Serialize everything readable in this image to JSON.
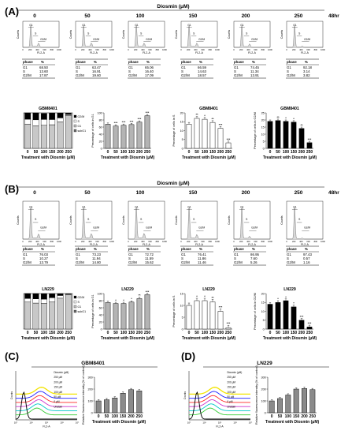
{
  "panel_letters": [
    "(A)",
    "(B)",
    "(C)",
    "(D)"
  ],
  "time_label": "48hr",
  "diosmin_header": "Diosmin (μM)",
  "histogram_axis": {
    "ylabel": "Counts",
    "xlabel": "FL2-A",
    "ticks": [
      "0",
      "200",
      "400",
      "600",
      "800",
      "1000"
    ]
  },
  "gate_labels": {
    "g1": "G1",
    "s": "S",
    "g2m": "G2/M"
  },
  "table_header": {
    "phase": "phase",
    "percent": "%"
  },
  "concentrations": [
    "0",
    "50",
    "100",
    "150",
    "200",
    "250"
  ],
  "sections": [
    {
      "cell_line": "GBM8401",
      "tables": [
        {
          "G1": "68.50",
          "S": "13.60",
          "G2/M": "17.87"
        },
        {
          "G1": "63.47",
          "S": "16.91",
          "G2/M": "19.60"
        },
        {
          "G1": "65.06",
          "S": "16.40",
          "G2/M": "17.09"
        },
        {
          "G1": "66.59",
          "S": "14.63",
          "G2/M": "18.57"
        },
        {
          "G1": "74.45",
          "S": "11.34",
          "G2/M": "13.91"
        },
        {
          "G1": "92.18",
          "S": "3.14",
          "G2/M": "3.82"
        }
      ]
    },
    {
      "cell_line": "LN229",
      "tables": [
        {
          "G1": "76.03",
          "S": "10.27",
          "G2/M": "13.79"
        },
        {
          "G1": "73.23",
          "S": "11.94",
          "G2/M": "14.80"
        },
        {
          "G1": "72.72",
          "S": "11.59",
          "G2/M": "15.62"
        },
        {
          "G1": "76.41",
          "S": "11.86",
          "G2/M": "11.46"
        },
        {
          "G1": "86.95",
          "S": "7.60",
          "G2/M": "5.26"
        },
        {
          "G1": "97.43",
          "S": "0.57",
          "G2/M": "1.16"
        }
      ]
    }
  ],
  "bar_xlabel": "Treatment with Diosmin (μM)",
  "legend_entries": [
    "G2/M",
    "S",
    "G1",
    "subG1"
  ],
  "colors": {
    "g1": "#c8c8c8",
    "s": "#ffffff",
    "g2m": "#000000",
    "subg1": "#6e6e6e"
  },
  "chart_data": [
    {
      "type": "bar",
      "stacked": true,
      "title": "GBM8401",
      "categories": [
        "0",
        "50",
        "100",
        "150",
        "200",
        "250"
      ],
      "ylim": [
        0,
        100
      ],
      "series": [
        {
          "name": "G1",
          "values": [
            68.5,
            63.47,
            65.06,
            66.59,
            74.45,
            92.18
          ]
        },
        {
          "name": "S",
          "values": [
            13.6,
            16.91,
            16.4,
            14.63,
            11.34,
            3.14
          ]
        },
        {
          "name": "G2/M",
          "values": [
            17.87,
            19.6,
            17.09,
            18.57,
            13.91,
            3.82
          ]
        }
      ]
    },
    {
      "type": "bar",
      "ylabel": "Percentage of cells in G1",
      "categories": [
        "0",
        "50",
        "100",
        "150",
        "200",
        "250"
      ],
      "ylim": [
        0,
        100
      ],
      "yticks": [
        0,
        20,
        40,
        60,
        80,
        100
      ],
      "values": [
        68,
        63,
        65,
        67,
        74,
        92
      ],
      "color": "#b4b4b4",
      "stars": [
        "",
        "***",
        "***",
        "***",
        "***",
        "***"
      ]
    },
    {
      "type": "bar",
      "title": "GBM8401",
      "ylabel": "Percentage of cells in S",
      "categories": [
        "0",
        "50",
        "100",
        "150",
        "200",
        "250"
      ],
      "ylim": [
        0,
        20
      ],
      "yticks": [
        0,
        5,
        10,
        15,
        20
      ],
      "values": [
        13.6,
        16.9,
        16.4,
        14.6,
        11.3,
        3.1
      ],
      "color": "#ffffff",
      "stars": [
        "",
        "**",
        "*",
        "**",
        "***",
        "***"
      ]
    },
    {
      "type": "bar",
      "title": "GBM8401",
      "ylabel": "Percentage of cells in G2/M",
      "categories": [
        "0",
        "50",
        "100",
        "150",
        "200",
        "250"
      ],
      "ylim": [
        0,
        25
      ],
      "yticks": [
        0,
        5,
        10,
        15,
        20,
        25
      ],
      "values": [
        19,
        19.6,
        19,
        18.5,
        14,
        4
      ],
      "color": "#000000",
      "stars": [
        "",
        "**",
        "*",
        "*",
        "**",
        "***"
      ]
    },
    {
      "type": "bar",
      "stacked": true,
      "title": "LN229",
      "categories": [
        "0",
        "50",
        "100",
        "150",
        "200",
        "250"
      ],
      "ylim": [
        0,
        100
      ],
      "series": [
        {
          "name": "G1",
          "values": [
            76.03,
            73.23,
            72.72,
            76.41,
            86.95,
            97.43
          ]
        },
        {
          "name": "S",
          "values": [
            10.27,
            11.94,
            11.59,
            11.86,
            7.6,
            0.57
          ]
        },
        {
          "name": "G2/M",
          "values": [
            13.79,
            14.8,
            15.62,
            11.46,
            5.26,
            1.16
          ]
        }
      ]
    },
    {
      "type": "bar",
      "title": "LN229",
      "ylabel": "Percentage of cells in G1",
      "categories": [
        "0",
        "50",
        "100",
        "150",
        "200",
        "250"
      ],
      "ylim": [
        0,
        100
      ],
      "yticks": [
        0,
        20,
        40,
        60,
        80,
        100
      ],
      "values": [
        75,
        72,
        72,
        76,
        86,
        97
      ],
      "color": "#b4b4b4",
      "stars": [
        "",
        "*",
        "*",
        "*",
        "**",
        "***"
      ]
    },
    {
      "type": "bar",
      "title": "LN229",
      "ylabel": "Percentage of cells in S",
      "categories": [
        "0",
        "50",
        "100",
        "150",
        "200",
        "250"
      ],
      "ylim": [
        0,
        15
      ],
      "yticks": [
        0,
        5,
        10,
        15
      ],
      "values": [
        10,
        12,
        12,
        11.5,
        7.5,
        0.6
      ],
      "color": "#ffffff",
      "stars": [
        "",
        "*",
        "*",
        "**",
        "***",
        "***"
      ]
    },
    {
      "type": "bar",
      "title": "LN229",
      "ylabel": "Percentage of cells in G2/M",
      "categories": [
        "0",
        "50",
        "100",
        "150",
        "200",
        "250"
      ],
      "ylim": [
        0,
        20
      ],
      "yticks": [
        0,
        5,
        10,
        15,
        20
      ],
      "values": [
        14,
        15,
        16,
        12.5,
        5,
        1.2
      ],
      "color": "#000000",
      "stars": [
        "",
        "*",
        "*",
        "*",
        "***",
        "***"
      ]
    },
    {
      "type": "bar",
      "title": "GBM8401",
      "ylabel": "Relative fluorescence intensity (% of control)",
      "categories": [
        "0",
        "50",
        "100",
        "150",
        "200",
        "250"
      ],
      "ylim": [
        0,
        300
      ],
      "yticks": [
        0,
        100,
        200,
        300
      ],
      "values": [
        100,
        110,
        125,
        165,
        195,
        185
      ],
      "color": "#8a8a8a"
    },
    {
      "type": "bar",
      "title": "LN229",
      "ylabel": "Relative fluorescence intensity (% of control)",
      "categories": [
        "0",
        "50",
        "100",
        "150",
        "200",
        "250"
      ],
      "ylim": [
        0,
        300
      ],
      "yticks": [
        0,
        100,
        200,
        300
      ],
      "values": [
        100,
        120,
        150,
        200,
        205,
        195
      ],
      "color": "#8a8a8a"
    }
  ],
  "overlay": {
    "labels": [
      "Diosmin (μM)",
      "250 μM",
      "200 μM",
      "150 μM",
      "100 μM",
      "50 μM",
      "0 μM",
      "Unstain"
    ],
    "colors": [
      "#f2e300",
      "#1c1cff",
      "#ff2a2a",
      "#cc33cc",
      "#00c8c8",
      "#33cc33",
      "#000000"
    ],
    "xlabel": "FL2-A",
    "ylabel": "Counts",
    "xticks": [
      "10⁰",
      "10¹",
      "10²",
      "10³",
      "10⁴"
    ]
  }
}
